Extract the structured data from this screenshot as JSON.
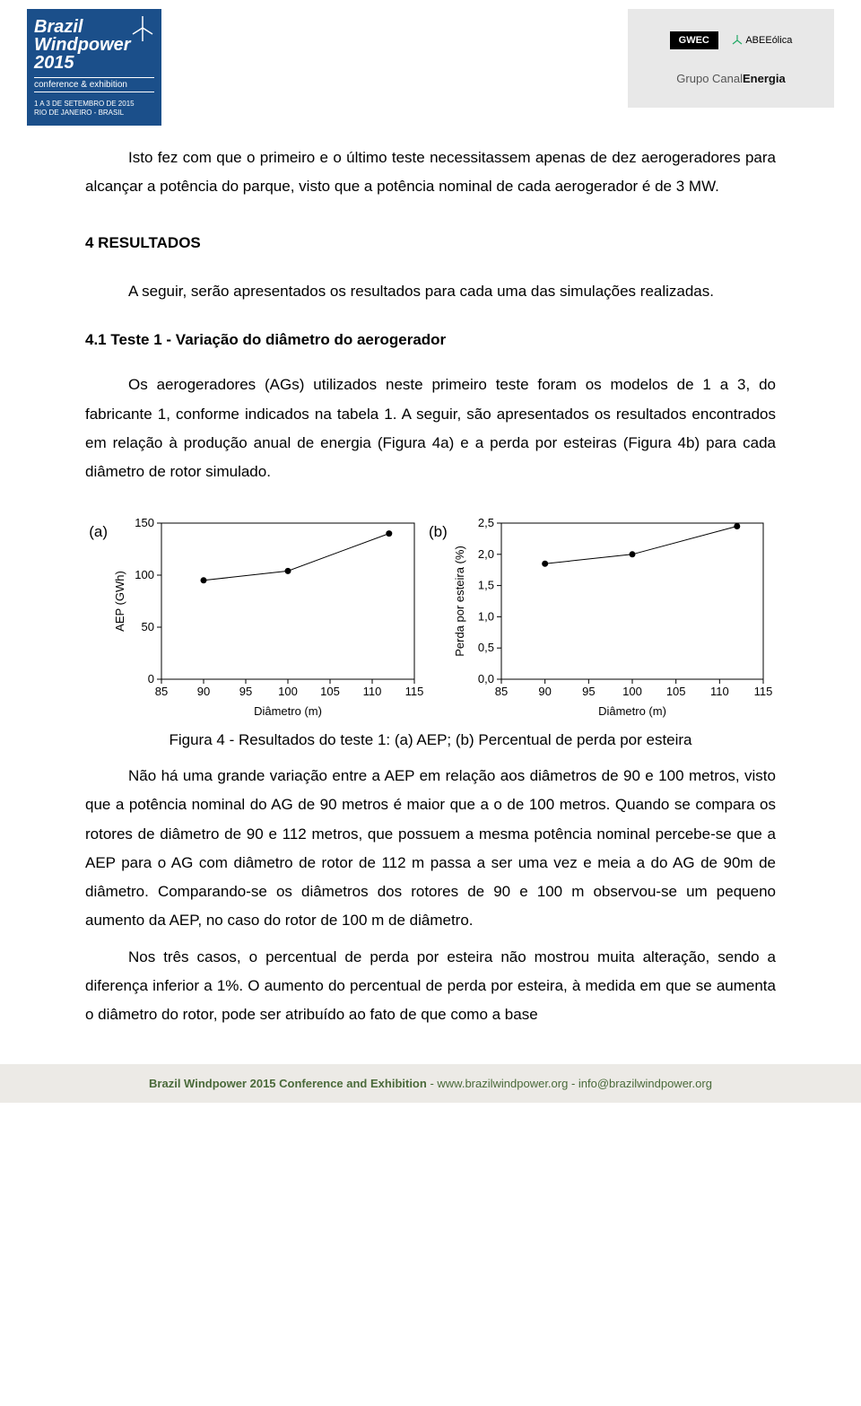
{
  "header": {
    "logo": {
      "line1": "Brazil",
      "line2": "Windpower",
      "year": "2015",
      "sub": "conference & exhibition",
      "dates": "1 A 3 DE SETEMBRO DE 2015\nRIO DE JANEIRO - BRASIL"
    },
    "sponsors": {
      "gwec": "GWEC",
      "abe": "ABEEólica",
      "canal_prefix": "Grupo Canal",
      "canal_bold": "Energia"
    }
  },
  "body": {
    "p1": "Isto fez com que o primeiro e o último teste necessitassem apenas de dez aerogeradores para alcançar a potência do parque, visto que a potência nominal de cada aerogerador é de 3 MW.",
    "h_results": "4 RESULTADOS",
    "p2": "A seguir, serão apresentados os resultados para cada uma das simulações realizadas.",
    "h_test1": "4.1 Teste 1 - Variação do diâmetro do aerogerador",
    "p3": "Os aerogeradores (AGs) utilizados neste primeiro teste foram os modelos de 1 a 3, do fabricante 1, conforme indicados na tabela 1. A seguir, são apresentados os resultados encontrados em relação à produção anual de energia (Figura 4a) e a perda por esteiras (Figura 4b) para cada diâmetro de rotor simulado.",
    "fig_caption": "Figura 4 - Resultados do teste 1: (a) AEP; (b) Percentual de perda por esteira",
    "p4": "Não há uma grande variação entre a AEP em relação aos diâmetros de 90 e 100 metros, visto que a potência nominal do AG de 90 metros é maior que a o de 100 metros. Quando se compara os rotores de diâmetro de 90 e 112 metros, que possuem a mesma potência nominal percebe-se que a AEP para o AG com diâmetro de rotor de 112 m passa a ser uma vez e meia a do AG de 90m de diâmetro. Comparando-se os diâmetros dos rotores de 90 e 100 m observou-se um pequeno aumento da AEP, no caso do rotor de 100 m de diâmetro.",
    "p5": "Nos três casos, o percentual de perda por esteira não mostrou muita alteração, sendo a diferença inferior a 1%. O aumento do percentual de perda por esteira, à medida em que se aumenta o diâmetro do rotor, pode ser atribuído ao fato de que como a base"
  },
  "charts": {
    "label_a": "(a)",
    "label_b": "(b)",
    "a": {
      "type": "scatter-line",
      "ylabel": "AEP (GWh)",
      "xlabel": "Diâmetro (m)",
      "xlim": [
        85,
        115
      ],
      "ylim": [
        0,
        150
      ],
      "xticks": [
        85,
        90,
        95,
        100,
        105,
        110,
        115
      ],
      "yticks": [
        0,
        50,
        100,
        150
      ],
      "points": [
        {
          "x": 90,
          "y": 95
        },
        {
          "x": 100,
          "y": 104
        },
        {
          "x": 112,
          "y": 140
        }
      ],
      "line_color": "#000000",
      "marker_color": "#000000",
      "marker_size": 3.5,
      "line_width": 1,
      "axis_color": "#000000",
      "background": "#ffffff",
      "font_size": 13
    },
    "b": {
      "type": "scatter-line",
      "ylabel": "Perda por esteira (%)",
      "xlabel": "Diâmetro (m)",
      "xlim": [
        85,
        115
      ],
      "ylim": [
        0.0,
        2.5
      ],
      "xticks": [
        85,
        90,
        95,
        100,
        105,
        110,
        115
      ],
      "yticks": [
        0.0,
        0.5,
        1.0,
        1.5,
        2.0,
        2.5
      ],
      "ytick_labels": [
        "0,0",
        "0,5",
        "1,0",
        "1,5",
        "2,0",
        "2,5"
      ],
      "points": [
        {
          "x": 90,
          "y": 1.85
        },
        {
          "x": 100,
          "y": 2.0
        },
        {
          "x": 112,
          "y": 2.45
        }
      ],
      "line_color": "#000000",
      "marker_color": "#000000",
      "marker_size": 3.5,
      "line_width": 1,
      "axis_color": "#000000",
      "background": "#ffffff",
      "font_size": 13
    }
  },
  "footer": {
    "bold": "Brazil Windpower 2015 Conference and Exhibition",
    "rest": " - www.brazilwindpower.org - info@brazilwindpower.org"
  }
}
